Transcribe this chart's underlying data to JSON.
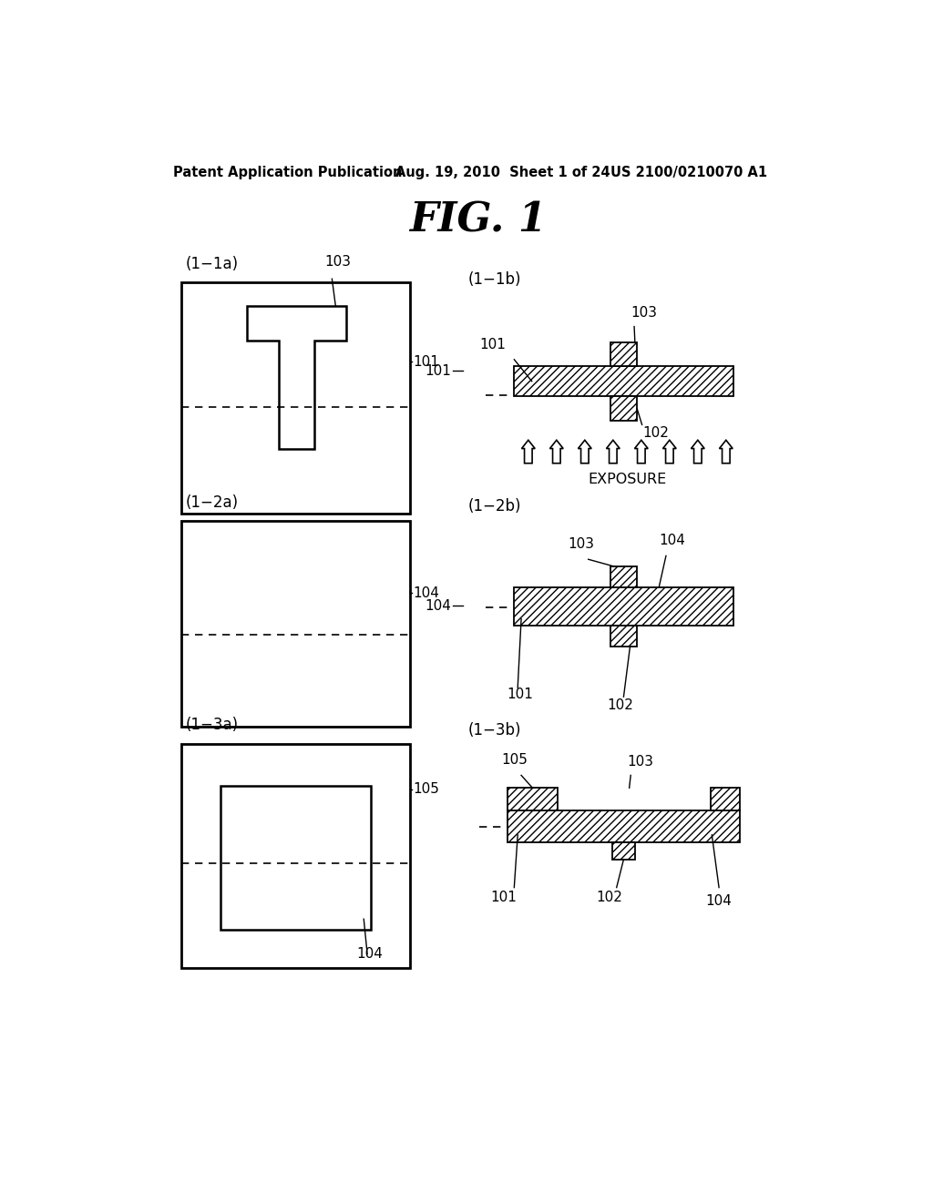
{
  "bg_color": "#ffffff",
  "header_left": "Patent Application Publication",
  "header_mid": "Aug. 19, 2010  Sheet 1 of 24",
  "header_right": "US 2100/0210070 A1",
  "fig_title": "FIG. 1"
}
